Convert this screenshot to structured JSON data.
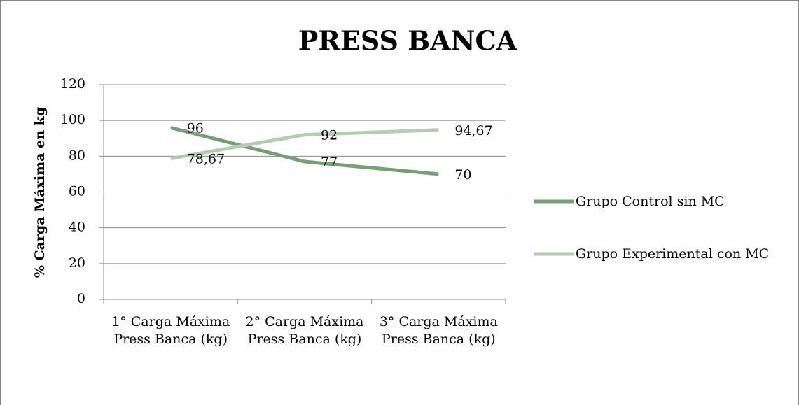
{
  "chart_data": {
    "type": "line",
    "title": "PRESS BANCA",
    "y_label": "% Carga Máxima en kg",
    "categories": [
      "1° Carga Máxima Press Banca (kg)",
      "2° Carga Máxima Press Banca (kg)",
      "3° Carga Máxima Press Banca (kg)"
    ],
    "series": [
      {
        "name": "Grupo Control sin MC",
        "color": "#789f78",
        "values": [
          96,
          77,
          70
        ]
      },
      {
        "name": "Grupo Experimental con MC",
        "color": "#b6cbb1",
        "values": [
          78.67,
          92,
          94.67
        ],
        "value_labels": [
          "78,67",
          "92",
          "94,67"
        ]
      }
    ],
    "ylim": [
      0,
      120
    ],
    "yticks": [
      0,
      20,
      40,
      60,
      80,
      100,
      120
    ],
    "grid": true,
    "legend": "right"
  }
}
